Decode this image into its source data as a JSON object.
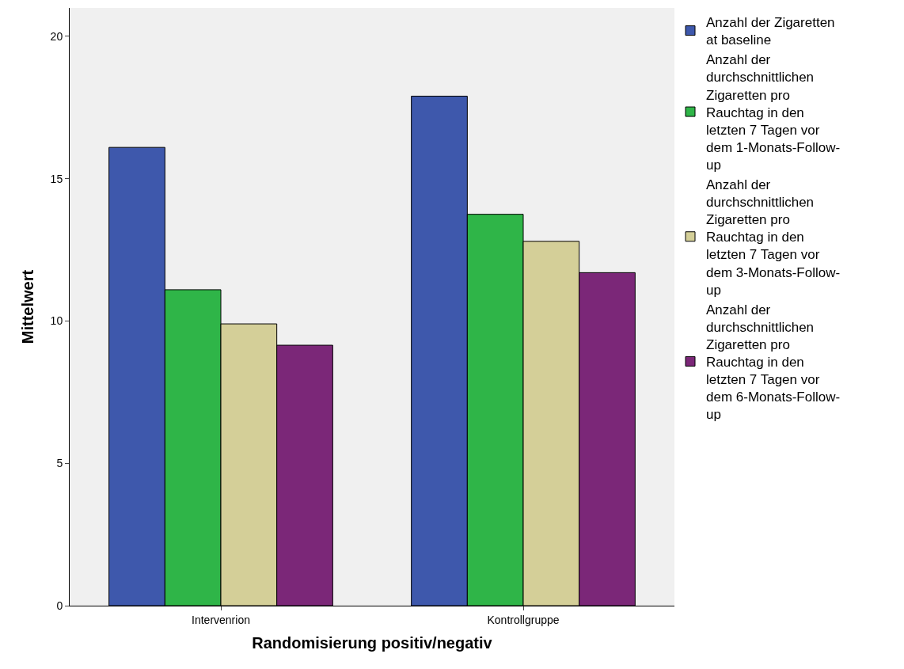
{
  "chart_data": {
    "type": "bar",
    "xlabel": "Randomisierung positiv/negativ",
    "ylabel": "Mittelwert",
    "categories": [
      "Intervenrion",
      "Kontrollgruppe"
    ],
    "series": [
      {
        "name": "Anzahl der Zigaretten at baseline",
        "color": "#3e58ac",
        "values": [
          16.1,
          17.9
        ]
      },
      {
        "name": "Anzahl der durchschnittlichen Zigaretten pro Rauchtag in den letzten 7 Tagen vor dem 1-Monats-Follow-up",
        "color": "#2fb548",
        "values": [
          11.1,
          13.75
        ]
      },
      {
        "name": "Anzahl der durchschnittlichen Zigaretten pro Rauchtag in den letzten 7 Tagen vor dem 3-Monats-Follow-up",
        "color": "#d4cf98",
        "values": [
          9.9,
          12.8
        ]
      },
      {
        "name": "Anzahl der durchschnittlichen Zigaretten pro Rauchtag in den letzten 7 Tagen vor dem 6-Monats-Follow-up",
        "color": "#7b2778",
        "values": [
          9.15,
          11.7
        ]
      }
    ],
    "ylim": [
      0,
      21
    ],
    "yticks": [
      0,
      5,
      10,
      15,
      20
    ],
    "grid": false,
    "legend": "top right"
  }
}
